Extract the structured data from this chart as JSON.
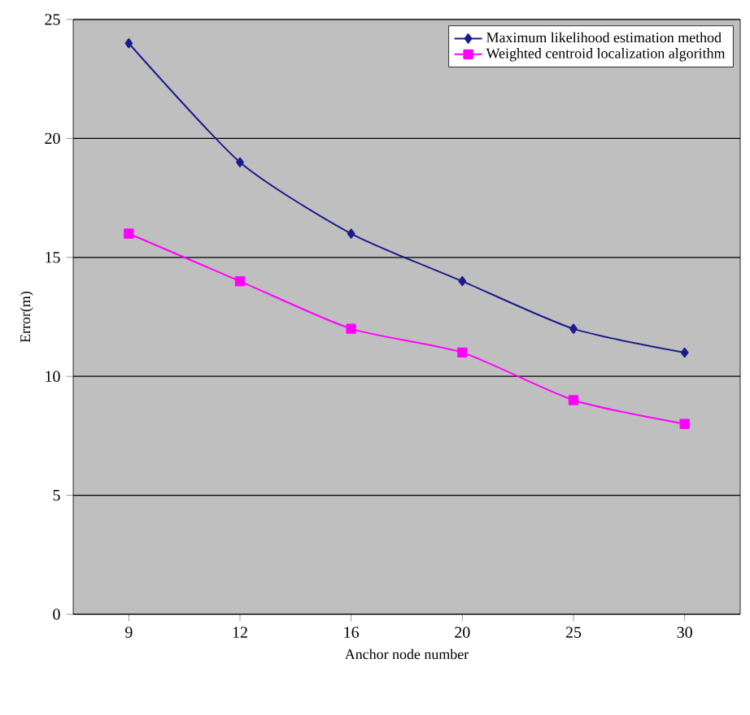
{
  "chart_data": {
    "type": "line",
    "xlabel": "Anchor node number",
    "ylabel": "Error(m)",
    "categories": [
      "9",
      "12",
      "16",
      "20",
      "25",
      "30"
    ],
    "series": [
      {
        "name": "Maximum likelihood estimation method",
        "color": "#1c1c8c",
        "marker": "diamond",
        "values": [
          24,
          19,
          16,
          14,
          12,
          11
        ]
      },
      {
        "name": "Weighted centroid localization algorithm",
        "color": "#ff00ff",
        "marker": "square",
        "values": [
          16,
          14,
          12,
          11,
          9,
          8
        ]
      }
    ],
    "ylim": [
      0,
      25
    ],
    "yticks": [
      0,
      5,
      10,
      15,
      20,
      25
    ],
    "grid": "y",
    "legend": "top right"
  }
}
